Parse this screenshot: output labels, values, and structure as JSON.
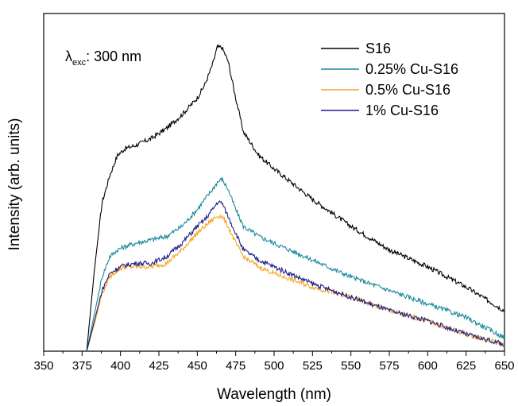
{
  "chart_data": {
    "type": "line",
    "xlabel": "Wavelength (nm)",
    "ylabel": "Intensity (arb. units)",
    "xlim": [
      350,
      650
    ],
    "ylim": [
      0,
      1.0
    ],
    "x_ticks": [
      "350",
      "375",
      "400",
      "425",
      "450",
      "475",
      "500",
      "525",
      "550",
      "575",
      "600",
      "625",
      "650"
    ],
    "y_ticks_shown": false,
    "grid": false,
    "legend_position": "top-right",
    "annotation": {
      "symbol": "λ",
      "subscript": "exc",
      "text": ": 300 nm"
    },
    "x": [
      378,
      383,
      388,
      393,
      398,
      403,
      410,
      420,
      430,
      440,
      450,
      455,
      460,
      463,
      466,
      470,
      475,
      480,
      490,
      500,
      525,
      550,
      575,
      600,
      625,
      650
    ],
    "series": [
      {
        "name": "S16",
        "color": "#000000",
        "values": [
          0.0,
          0.24,
          0.44,
          0.52,
          0.58,
          0.6,
          0.61,
          0.63,
          0.66,
          0.7,
          0.75,
          0.79,
          0.85,
          0.9,
          0.9,
          0.86,
          0.75,
          0.65,
          0.58,
          0.54,
          0.45,
          0.37,
          0.3,
          0.25,
          0.19,
          0.12
        ]
      },
      {
        "name": "0.25% Cu-S16",
        "color": "#1a8a9a",
        "values": [
          0.0,
          0.11,
          0.22,
          0.28,
          0.3,
          0.31,
          0.32,
          0.33,
          0.34,
          0.37,
          0.42,
          0.45,
          0.48,
          0.5,
          0.51,
          0.48,
          0.42,
          0.37,
          0.34,
          0.32,
          0.27,
          0.22,
          0.18,
          0.14,
          0.1,
          0.04
        ]
      },
      {
        "name": "0.5% Cu-S16",
        "color": "#f5a623",
        "values": [
          0.0,
          0.08,
          0.17,
          0.22,
          0.24,
          0.25,
          0.25,
          0.25,
          0.26,
          0.3,
          0.35,
          0.37,
          0.39,
          0.4,
          0.4,
          0.37,
          0.32,
          0.28,
          0.25,
          0.23,
          0.19,
          0.16,
          0.12,
          0.09,
          0.05,
          0.02
        ]
      },
      {
        "name": "1% Cu-S16",
        "color": "#1f1f8c",
        "values": [
          0.0,
          0.09,
          0.18,
          0.23,
          0.245,
          0.255,
          0.26,
          0.26,
          0.28,
          0.32,
          0.37,
          0.39,
          0.42,
          0.44,
          0.44,
          0.4,
          0.35,
          0.3,
          0.27,
          0.25,
          0.2,
          0.16,
          0.12,
          0.09,
          0.05,
          0.02
        ]
      }
    ]
  }
}
